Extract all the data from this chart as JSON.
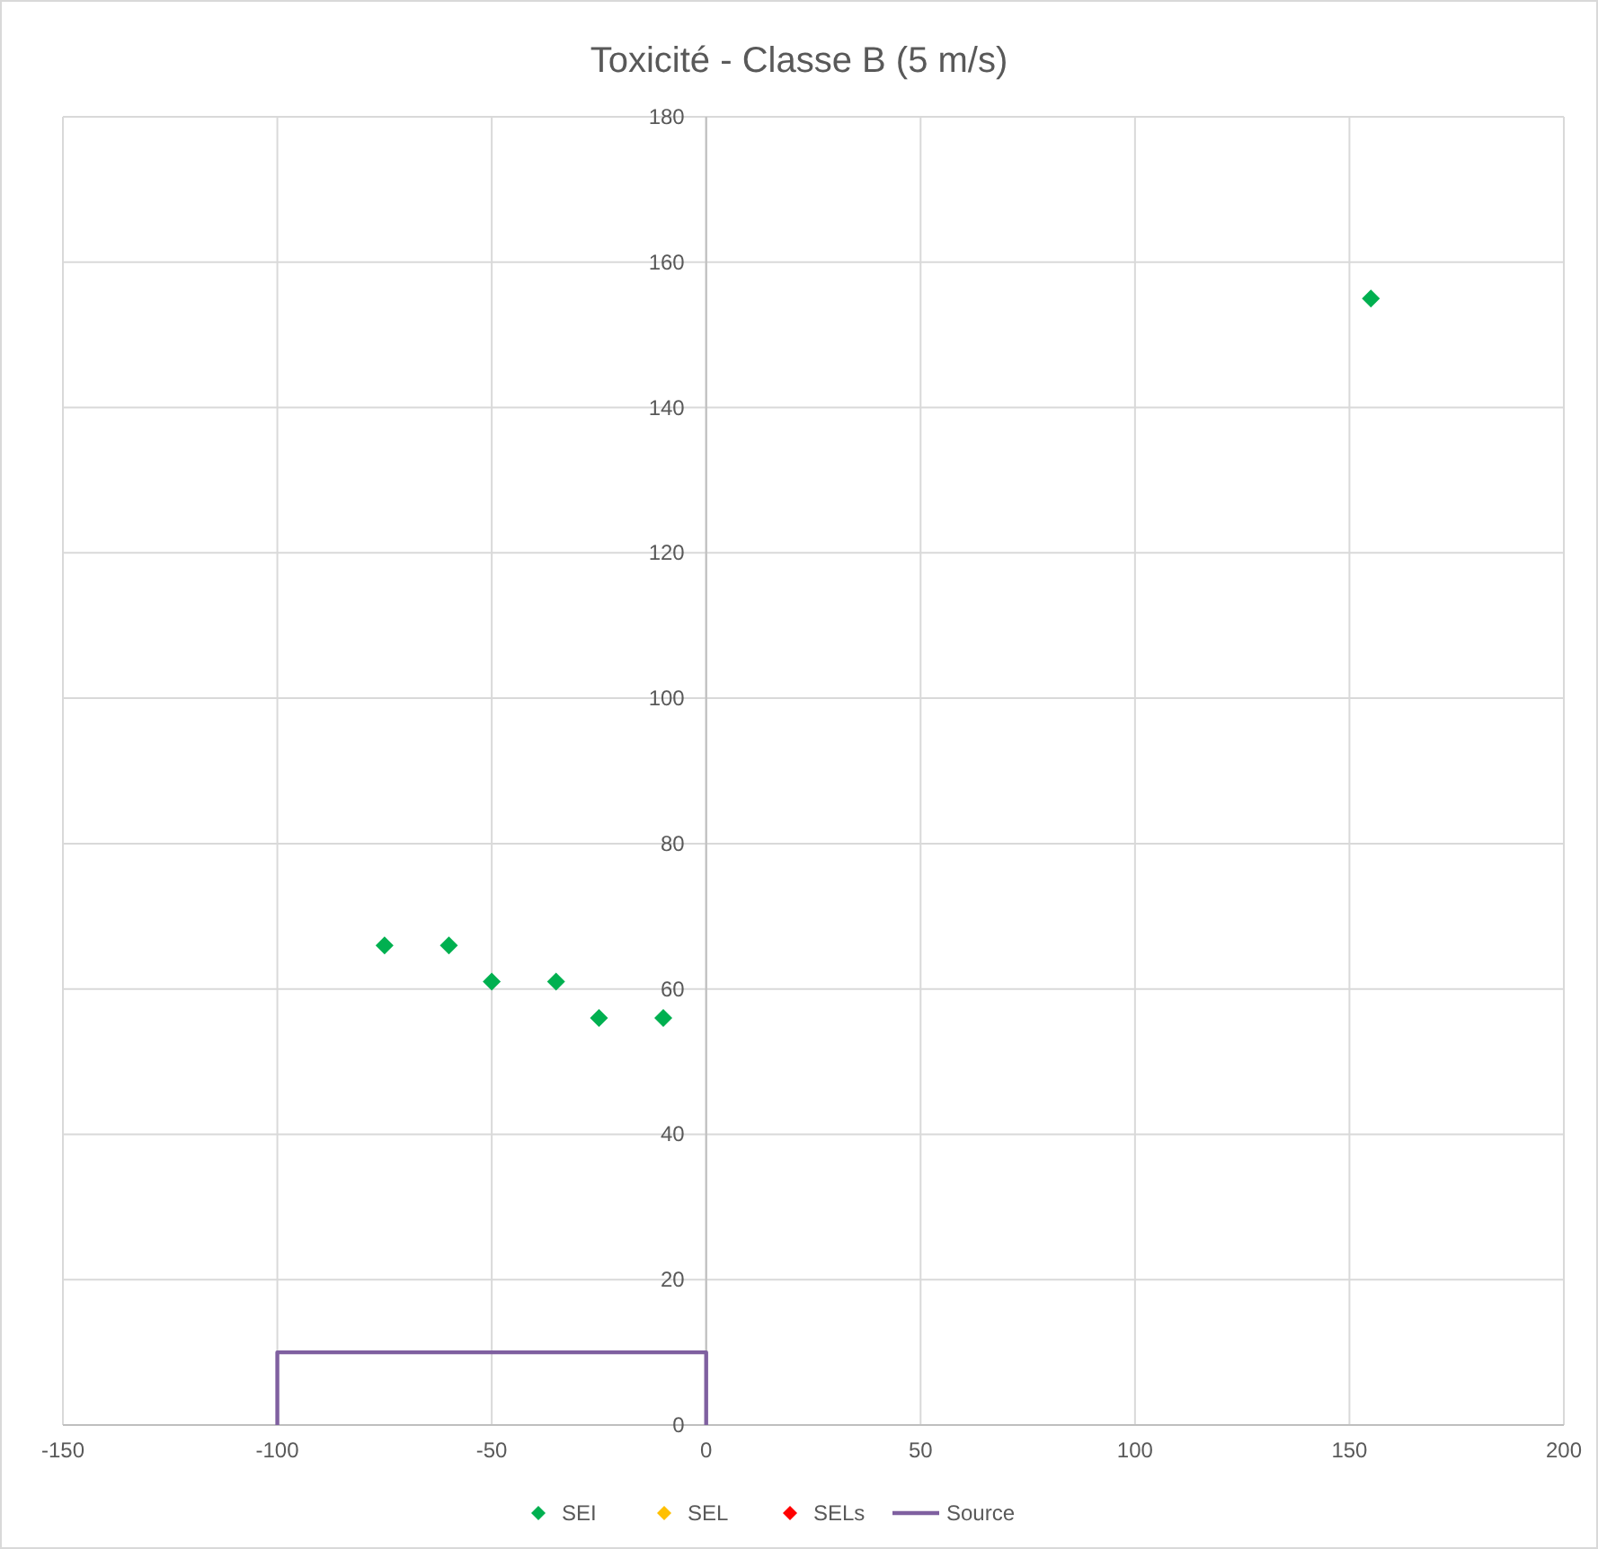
{
  "chart_data": {
    "type": "scatter",
    "title": "Toxicité - Classe B (5 m/s)",
    "xlim": [
      -150,
      200
    ],
    "xticks": [
      -150,
      -100,
      -50,
      0,
      50,
      100,
      150,
      200
    ],
    "ylim": [
      0,
      180
    ],
    "yticks": [
      0,
      20,
      40,
      60,
      80,
      100,
      120,
      140,
      160,
      180
    ],
    "grid": true,
    "legend": "bottom",
    "marker": "diamond",
    "series": [
      {
        "name": "SEI",
        "color": "#00b050",
        "x": [
          -75,
          -60,
          -50,
          -35,
          -25,
          -10,
          155
        ],
        "values": [
          66,
          66,
          61,
          61,
          56,
          56,
          155
        ]
      },
      {
        "name": "SEL",
        "color": "#ffc000"
      },
      {
        "name": "SELs",
        "color": "#ff0000"
      },
      {
        "name": "Source",
        "type": "line",
        "marker": "none",
        "line_style": "solid",
        "color": "#7f60a0",
        "x": [
          -100,
          -100,
          0,
          0
        ],
        "values": [
          0,
          10,
          10,
          0
        ]
      }
    ]
  }
}
